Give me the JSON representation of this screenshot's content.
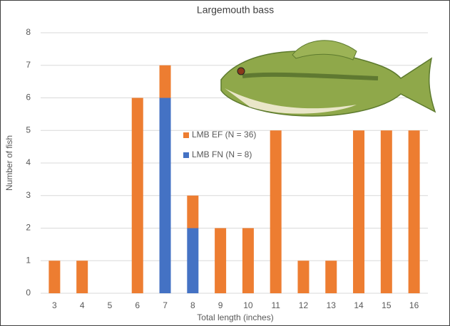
{
  "chart_data": {
    "type": "bar",
    "stacked": true,
    "title": "Largemouth bass",
    "x_label": "Total length (inches)",
    "y_label": "Number of fish",
    "categories": [
      "3",
      "4",
      "5",
      "6",
      "7",
      "8",
      "9",
      "10",
      "11",
      "12",
      "13",
      "14",
      "15",
      "16"
    ],
    "series": [
      {
        "name": "LMB EF (N = 36)",
        "color": "#ed7d31",
        "values": [
          1,
          1,
          0,
          6,
          1,
          1,
          2,
          2,
          5,
          1,
          1,
          5,
          5,
          5
        ]
      },
      {
        "name": "LMB FN (N = 8)",
        "color": "#4472c4",
        "values": [
          0,
          0,
          0,
          0,
          6,
          2,
          0,
          0,
          0,
          0,
          0,
          0,
          0,
          0
        ]
      }
    ],
    "ylim": [
      0,
      8
    ],
    "yticks": [
      0,
      1,
      2,
      3,
      4,
      5,
      6,
      7,
      8
    ],
    "grid": true
  }
}
